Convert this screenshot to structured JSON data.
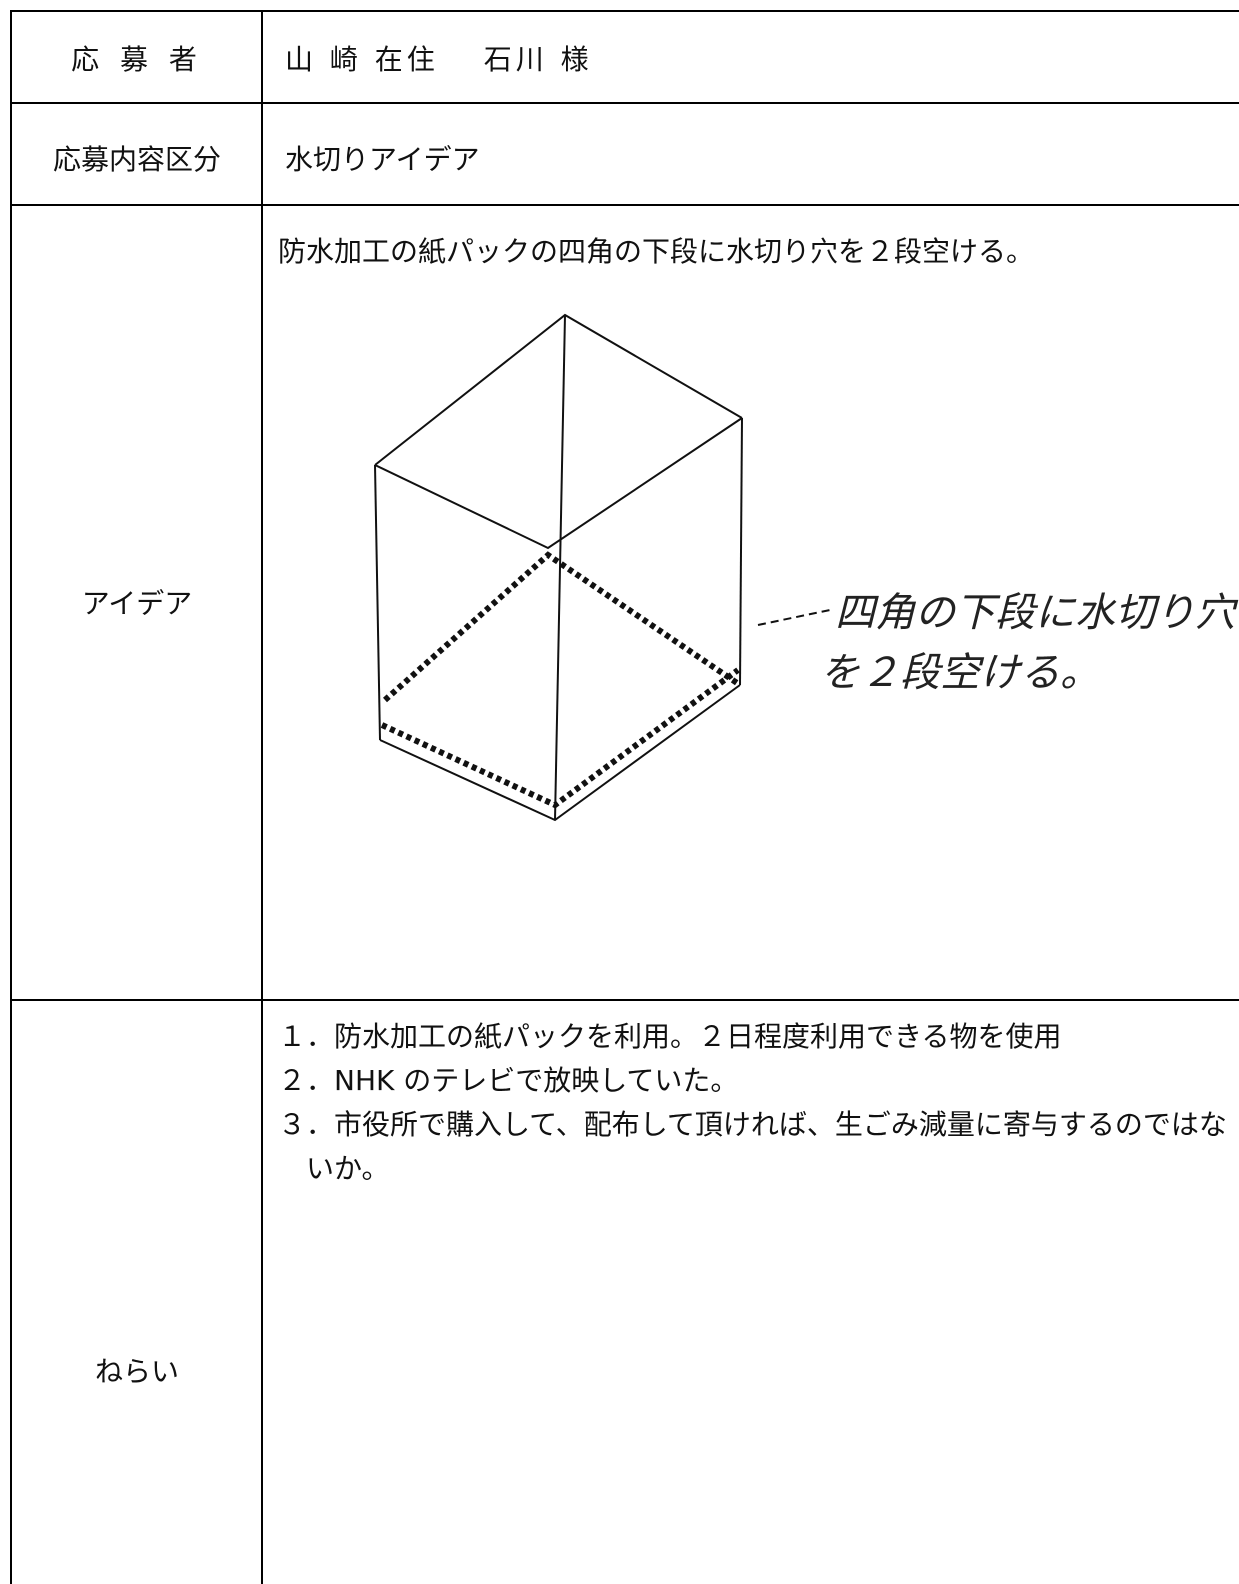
{
  "rows": [
    {
      "label": "応 募 者",
      "value": "山 崎 在住　 石川 様"
    },
    {
      "label": "応募内容区分",
      "value": "水切りアイデア"
    },
    {
      "label": "アイデア",
      "value": "防水加工の紙パックの四角の下段に水切り穴を２段空ける。",
      "annotation": [
        "四角の下段に水切り穴",
        "を２段空ける。"
      ]
    },
    {
      "label": "ねらい",
      "items": [
        "１．防水加工の紙パックを利用。２日程度利用できる物を使用",
        "２．NHK のテレビで放映していた。",
        "３．市役所で購入して、配布して頂ければ、生ごみ減量に寄与するのではないか。"
      ]
    }
  ]
}
